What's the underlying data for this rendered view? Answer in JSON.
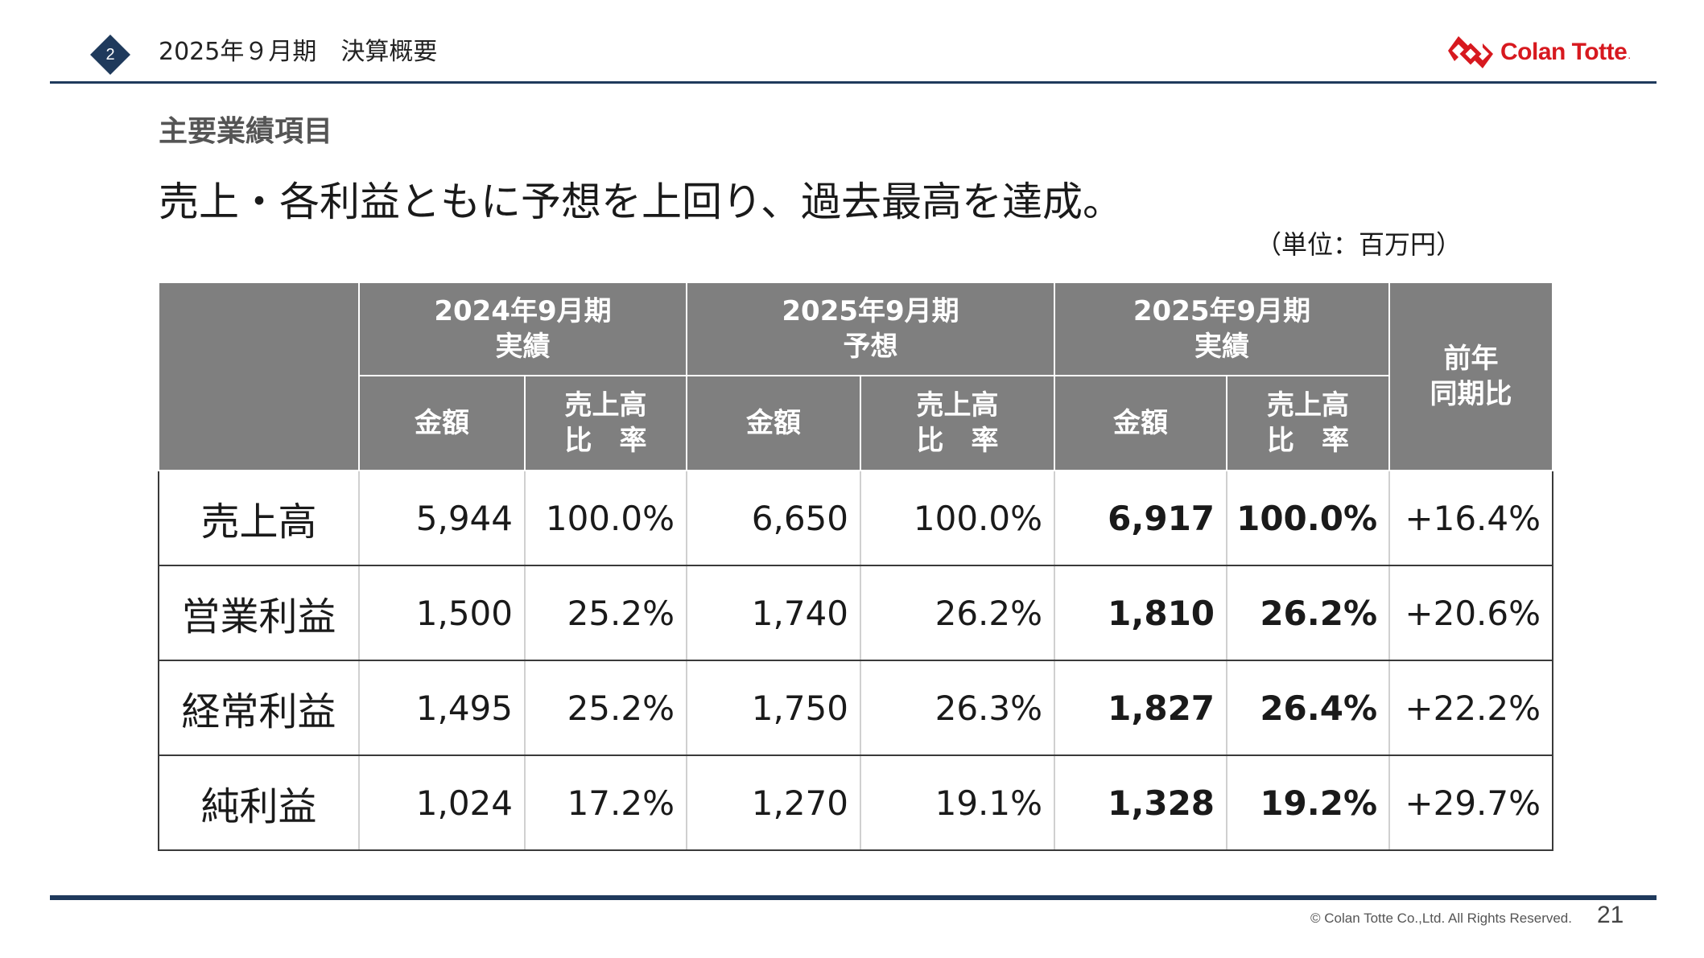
{
  "header": {
    "badge_number": "2",
    "title": "2025年９月期　決算概要",
    "logo_text": "Colan Totte",
    "logo_suffix": "."
  },
  "section_title": "主要業績項目",
  "headline": "売上・各利益ともに予想を上回り、過去最高を達成。",
  "unit_note": "（単位：百万円）",
  "table": {
    "groups": [
      {
        "line1": "2024年9月期",
        "line2": "実績"
      },
      {
        "line1": "2025年9月期",
        "line2": "予想"
      },
      {
        "line1": "2025年9月期",
        "line2": "実績"
      }
    ],
    "yoy_header": {
      "line1": "前年",
      "line2": "同期比"
    },
    "sub_amount": "金額",
    "sub_ratio": {
      "line1": "売上高",
      "line2": "比　率"
    },
    "rows": [
      {
        "label": "売上高",
        "prev_amount": "5,944",
        "prev_ratio": "100.0%",
        "fc_amount": "6,650",
        "fc_ratio": "100.0%",
        "act_amount": "6,917",
        "act_ratio": "100.0%",
        "yoy": "+16.4%"
      },
      {
        "label": "営業利益",
        "prev_amount": "1,500",
        "prev_ratio": "25.2%",
        "fc_amount": "1,740",
        "fc_ratio": "26.2%",
        "act_amount": "1,810",
        "act_ratio": "26.2%",
        "yoy": "+20.6%"
      },
      {
        "label": "経常利益",
        "prev_amount": "1,495",
        "prev_ratio": "25.2%",
        "fc_amount": "1,750",
        "fc_ratio": "26.3%",
        "act_amount": "1,827",
        "act_ratio": "26.4%",
        "yoy": "+22.2%"
      },
      {
        "label": "純利益",
        "prev_amount": "1,024",
        "prev_ratio": "17.2%",
        "fc_amount": "1,270",
        "fc_ratio": "19.1%",
        "act_amount": "1,328",
        "act_ratio": "19.2%",
        "yoy": "+29.7%"
      }
    ]
  },
  "footer": {
    "copyright": "© Colan Totte Co.,Ltd. All Rights Reserved.",
    "page_number": "21"
  },
  "colors": {
    "accent_navy": "#1f3a5c",
    "brand_red": "#d7191f",
    "header_gray": "#7f7f7f"
  },
  "icons": {
    "badge": "diamond-badge-icon",
    "logo": "colan-totte-logo-mark"
  }
}
